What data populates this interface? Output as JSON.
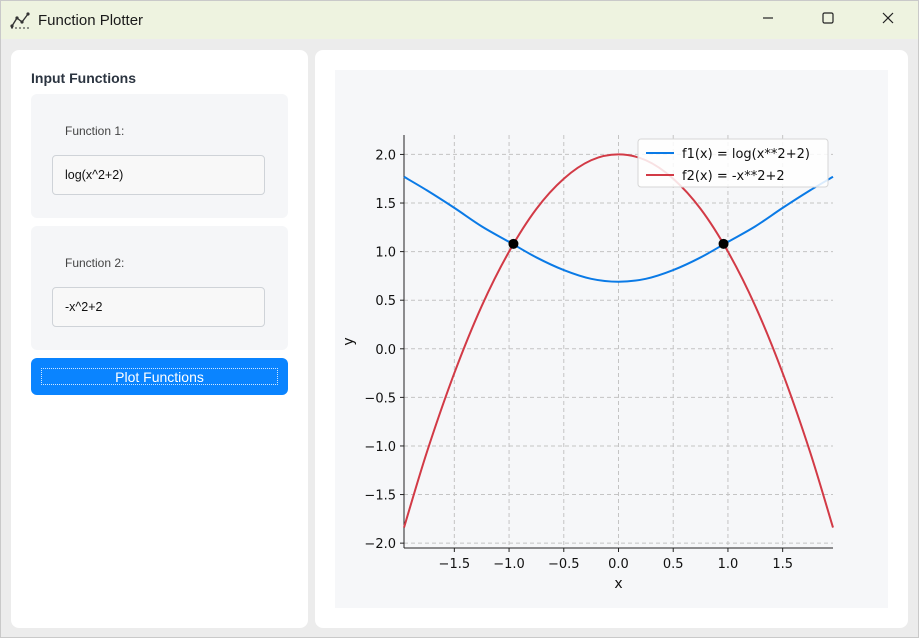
{
  "window": {
    "title": "Function Plotter",
    "icon": "chart-line-icon"
  },
  "controls": {
    "minimize_icon": "minimize-icon",
    "maximize_icon": "maximize-icon",
    "close_icon": "close-icon"
  },
  "sidebar": {
    "title": "Input Functions",
    "function1": {
      "label": "Function 1:",
      "value": "log(x^2+2)"
    },
    "function2": {
      "label": "Function 2:",
      "value": "-x^2+2"
    },
    "plot_button": "Plot Functions"
  },
  "colors": {
    "accent": "#0a84ff",
    "series1": "#0a7ae6",
    "series2": "#d23a46"
  },
  "chart_data": {
    "type": "line",
    "xlabel": "x",
    "ylabel": "y",
    "xlim": [
      -1.96,
      1.96
    ],
    "ylim": [
      -2.05,
      2.2
    ],
    "xticks": [
      -1.5,
      -1.0,
      -0.5,
      0.0,
      0.5,
      1.0,
      1.5
    ],
    "xtick_labels": [
      "−1.5",
      "−1.0",
      "−0.5",
      "0.0",
      "0.5",
      "1.0",
      "1.5"
    ],
    "yticks": [
      2.0,
      1.5,
      1.0,
      0.5,
      0.0,
      -0.5,
      -1.0,
      -1.5,
      -2.0
    ],
    "ytick_labels": [
      "2.0",
      "1.5",
      "1.0",
      "0.5",
      "0.0",
      "−0.5",
      "−1.0",
      "−1.5",
      "−2.0"
    ],
    "grid": true,
    "legend_position": "top-right",
    "series": [
      {
        "name": "f1(x) = log(x**2+2)",
        "color": "#0a7ae6",
        "x": [
          -1.96,
          -1.75,
          -1.5,
          -1.25,
          -1.0,
          -0.75,
          -0.5,
          -0.25,
          0.0,
          0.25,
          0.5,
          0.75,
          1.0,
          1.25,
          1.5,
          1.75,
          1.96
        ],
        "y": [
          1.77,
          1.63,
          1.45,
          1.26,
          1.1,
          0.94,
          0.81,
          0.72,
          0.69,
          0.72,
          0.81,
          0.94,
          1.1,
          1.26,
          1.45,
          1.63,
          1.77
        ]
      },
      {
        "name": "f2(x) = -x**2+2",
        "color": "#d23a46",
        "x": [
          -1.96,
          -1.75,
          -1.5,
          -1.25,
          -1.0,
          -0.75,
          -0.5,
          -0.25,
          0.0,
          0.25,
          0.5,
          0.75,
          1.0,
          1.25,
          1.5,
          1.75,
          1.96
        ],
        "y": [
          -1.84,
          -1.06,
          -0.25,
          0.44,
          1.0,
          1.44,
          1.75,
          1.94,
          2.0,
          1.94,
          1.75,
          1.44,
          1.0,
          0.44,
          -0.25,
          -1.06,
          -1.84
        ]
      }
    ],
    "points": [
      {
        "x": -0.96,
        "y": 1.08
      },
      {
        "x": 0.96,
        "y": 1.08
      }
    ]
  }
}
